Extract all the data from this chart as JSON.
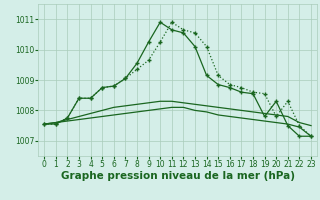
{
  "background_color": "#d4eee8",
  "grid_color": "#aaccbb",
  "line_color": "#1a6620",
  "xlabel": "Graphe pression niveau de la mer (hPa)",
  "xlabel_fontsize": 7.5,
  "ylim": [
    1006.5,
    1011.5
  ],
  "yticks": [
    1007,
    1008,
    1009,
    1010,
    1011
  ],
  "xlim": [
    -0.5,
    23.5
  ],
  "xticks": [
    0,
    1,
    2,
    3,
    4,
    5,
    6,
    7,
    8,
    9,
    10,
    11,
    12,
    13,
    14,
    15,
    16,
    17,
    18,
    19,
    20,
    21,
    22,
    23
  ],
  "s1_y": [
    1007.55,
    1007.55,
    1007.75,
    1008.4,
    1008.4,
    1008.75,
    1008.8,
    1009.05,
    1009.35,
    1009.65,
    1010.25,
    1010.9,
    1010.65,
    1010.55,
    1010.1,
    1009.15,
    1008.85,
    1008.75,
    1008.6,
    1008.55,
    1007.8,
    1008.3,
    1007.5,
    1007.15
  ],
  "s2_y": [
    1007.55,
    1007.55,
    1007.75,
    1008.4,
    1008.4,
    1008.75,
    1008.8,
    1009.05,
    1009.55,
    1010.25,
    1010.9,
    1010.65,
    1010.55,
    1010.1,
    1009.15,
    1008.85,
    1008.75,
    1008.6,
    1008.55,
    1007.8,
    1008.3,
    1007.5,
    1007.15,
    1007.15
  ],
  "s3_y": [
    1007.55,
    1007.6,
    1007.65,
    1007.7,
    1007.75,
    1007.8,
    1007.85,
    1007.9,
    1007.95,
    1008.0,
    1008.05,
    1008.1,
    1008.1,
    1008.0,
    1007.95,
    1007.85,
    1007.8,
    1007.75,
    1007.7,
    1007.65,
    1007.6,
    1007.55,
    1007.45,
    1007.15
  ],
  "s4_y": [
    1007.55,
    1007.6,
    1007.7,
    1007.8,
    1007.9,
    1008.0,
    1008.1,
    1008.15,
    1008.2,
    1008.25,
    1008.3,
    1008.3,
    1008.25,
    1008.2,
    1008.15,
    1008.1,
    1008.05,
    1008.0,
    1007.95,
    1007.9,
    1007.85,
    1007.8,
    1007.6,
    1007.5
  ]
}
